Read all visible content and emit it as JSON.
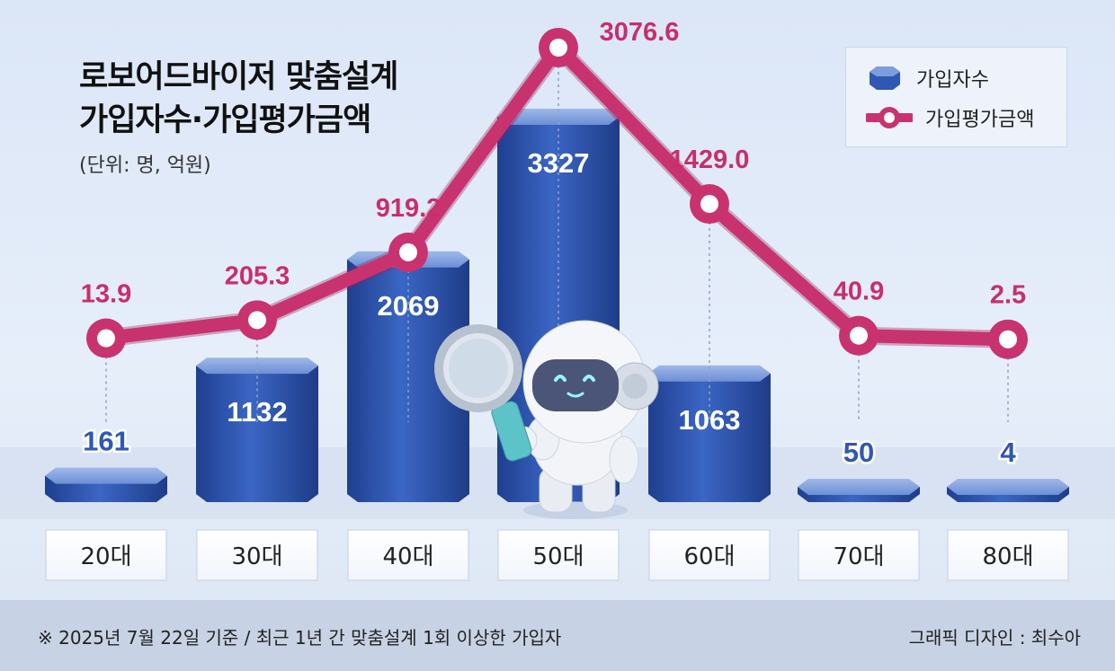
{
  "title_lines": [
    "로보어드바이저 맞춤설계",
    "가입자수·가입평가금액"
  ],
  "unit_note": "(단위: 명, 억원)",
  "legend": {
    "bars": "가입자수",
    "line": "가입평가금액"
  },
  "colors": {
    "bar": "#2f58b4",
    "line": "#c8336f",
    "value_line": "#c72f6c",
    "value_bar": "#ffffff"
  },
  "footnote": "※ 2025년 7월 22일 기준 / 최근 1년 간 맞춤설계 1회 이상한 가입자",
  "credit": "그래픽 디자인 : 최수아",
  "chart_data": {
    "type": "bar",
    "categories": [
      "20대",
      "30대",
      "40대",
      "50대",
      "60대",
      "70대",
      "80대"
    ],
    "series": [
      {
        "name": "가입자수",
        "type": "bar",
        "values": [
          161,
          1132,
          2069,
          3327,
          1063,
          50,
          4
        ],
        "labels": [
          "161",
          "1132",
          "2069",
          "3327",
          "1063",
          "50",
          "4"
        ]
      },
      {
        "name": "가입평가금액",
        "type": "line",
        "values": [
          13.9,
          205.3,
          919.2,
          3076.6,
          1429.0,
          40.9,
          2.5
        ],
        "labels": [
          "13.9",
          "205.3",
          "919.2",
          "3076.6",
          "1429.0",
          "40.9",
          "2.5"
        ]
      }
    ]
  }
}
